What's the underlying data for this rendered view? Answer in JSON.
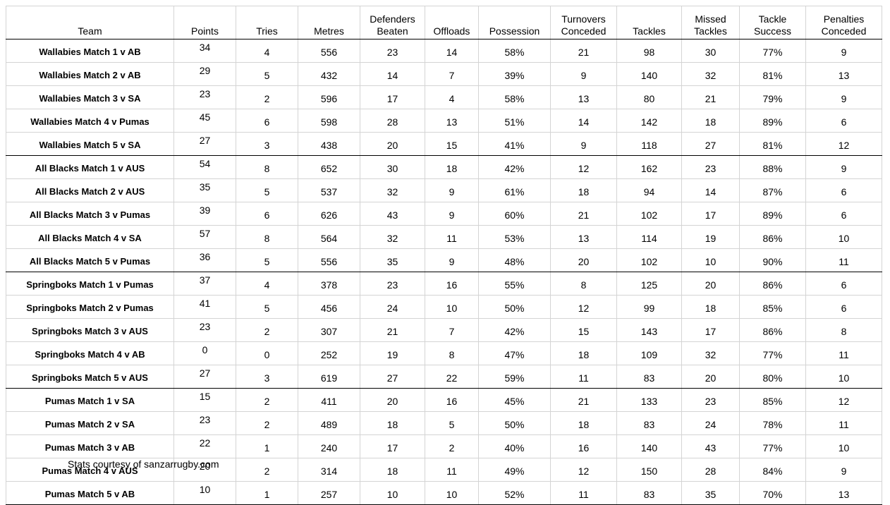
{
  "table": {
    "headers": [
      [
        "Team"
      ],
      [
        "Points"
      ],
      [
        "Tries"
      ],
      [
        "Metres"
      ],
      [
        "Defenders",
        "Beaten"
      ],
      [
        "Offloads"
      ],
      [
        "Possession"
      ],
      [
        "Turnovers",
        "Conceded"
      ],
      [
        "Tackles"
      ],
      [
        "Missed",
        "Tackles"
      ],
      [
        "Tackle",
        "Success"
      ],
      [
        "Penalties",
        "Conceded"
      ]
    ],
    "rows": [
      [
        "Wallabies Match 1 v AB",
        "34",
        "4",
        "556",
        "23",
        "14",
        "58%",
        "21",
        "98",
        "30",
        "77%",
        "9"
      ],
      [
        "Wallabies Match 2 v AB",
        "29",
        "5",
        "432",
        "14",
        "7",
        "39%",
        "9",
        "140",
        "32",
        "81%",
        "13"
      ],
      [
        "Wallabies Match 3 v SA",
        "23",
        "2",
        "596",
        "17",
        "4",
        "58%",
        "13",
        "80",
        "21",
        "79%",
        "9"
      ],
      [
        "Wallabies Match 4 v Pumas",
        "45",
        "6",
        "598",
        "28",
        "13",
        "51%",
        "14",
        "142",
        "18",
        "89%",
        "6"
      ],
      [
        "Wallabies Match 5 v SA",
        "27",
        "3",
        "438",
        "20",
        "15",
        "41%",
        "9",
        "118",
        "27",
        "81%",
        "12"
      ],
      [
        "All Blacks Match 1 v AUS",
        "54",
        "8",
        "652",
        "30",
        "18",
        "42%",
        "12",
        "162",
        "23",
        "88%",
        "9"
      ],
      [
        "All Blacks Match 2 v AUS",
        "35",
        "5",
        "537",
        "32",
        "9",
        "61%",
        "18",
        "94",
        "14",
        "87%",
        "6"
      ],
      [
        "All Blacks Match 3 v Pumas",
        "39",
        "6",
        "626",
        "43",
        "9",
        "60%",
        "21",
        "102",
        "17",
        "89%",
        "6"
      ],
      [
        "All Blacks Match 4 v SA",
        "57",
        "8",
        "564",
        "32",
        "11",
        "53%",
        "13",
        "114",
        "19",
        "86%",
        "10"
      ],
      [
        "All Blacks Match 5 v Pumas",
        "36",
        "5",
        "556",
        "35",
        "9",
        "48%",
        "20",
        "102",
        "10",
        "90%",
        "11"
      ],
      [
        "Springboks Match 1 v Pumas",
        "37",
        "4",
        "378",
        "23",
        "16",
        "55%",
        "8",
        "125",
        "20",
        "86%",
        "6"
      ],
      [
        "Springboks Match 2 v Pumas",
        "41",
        "5",
        "456",
        "24",
        "10",
        "50%",
        "12",
        "99",
        "18",
        "85%",
        "6"
      ],
      [
        "Springboks Match 3 v AUS",
        "23",
        "2",
        "307",
        "21",
        "7",
        "42%",
        "15",
        "143",
        "17",
        "86%",
        "8"
      ],
      [
        "Springboks Match 4 v AB",
        "0",
        "0",
        "252",
        "19",
        "8",
        "47%",
        "18",
        "109",
        "32",
        "77%",
        "11"
      ],
      [
        "Springboks Match 5 v AUS",
        "27",
        "3",
        "619",
        "27",
        "22",
        "59%",
        "11",
        "83",
        "20",
        "80%",
        "10"
      ],
      [
        "Pumas Match 1 v SA",
        "15",
        "2",
        "411",
        "20",
        "16",
        "45%",
        "21",
        "133",
        "23",
        "85%",
        "12"
      ],
      [
        "Pumas Match 2 v SA",
        "23",
        "2",
        "489",
        "18",
        "5",
        "50%",
        "18",
        "83",
        "24",
        "78%",
        "11"
      ],
      [
        "Pumas Match 3 v AB",
        "22",
        "1",
        "240",
        "17",
        "2",
        "40%",
        "16",
        "140",
        "43",
        "77%",
        "10"
      ],
      [
        "Pumas Match 4 v AUS",
        "20",
        "2",
        "314",
        "18",
        "11",
        "49%",
        "12",
        "150",
        "28",
        "84%",
        "9"
      ],
      [
        "Pumas Match 5 v AB",
        "10",
        "1",
        "257",
        "10",
        "10",
        "52%",
        "11",
        "83",
        "35",
        "70%",
        "13"
      ]
    ]
  },
  "footnote": "Stats courtesy of sanzarrugby.com"
}
